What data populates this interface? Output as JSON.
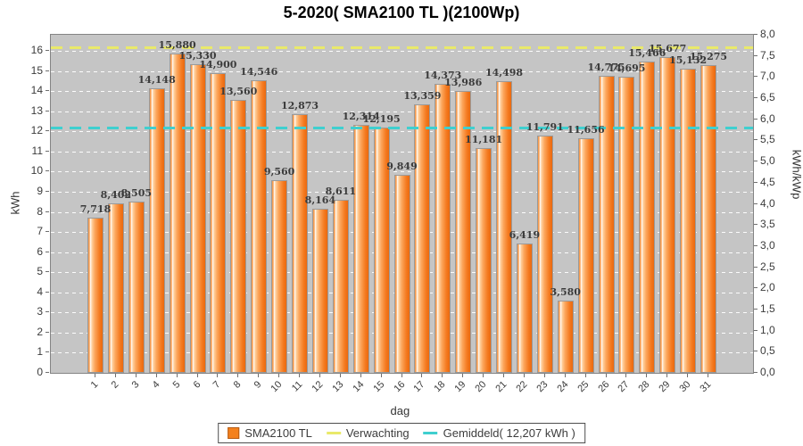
{
  "title": "5-2020( SMA2100 TL )(2100Wp)",
  "chart_data": {
    "type": "bar",
    "title": "5-2020( SMA2100 TL )(2100Wp)",
    "xlabel": "dag",
    "ylabel_left": "kWh",
    "ylabel_right": "kWh/kWp",
    "grid": "horizontal-white-dashed",
    "plot_background": "#c5c5c5",
    "legend_position": "bottom-center",
    "categories": [
      "1",
      "2",
      "3",
      "4",
      "5",
      "6",
      "7",
      "8",
      "9",
      "10",
      "11",
      "12",
      "13",
      "14",
      "15",
      "16",
      "17",
      "18",
      "19",
      "20",
      "21",
      "22",
      "23",
      "24",
      "25",
      "26",
      "27",
      "28",
      "29",
      "30",
      "31"
    ],
    "series": [
      {
        "name": "SMA2100 TL",
        "color": "#f4811e",
        "values": [
          7.718,
          8.402,
          8.505,
          14.148,
          15.88,
          15.33,
          14.9,
          13.56,
          14.546,
          9.56,
          12.873,
          8.164,
          8.611,
          12.314,
          12.195,
          9.849,
          13.359,
          14.373,
          13.986,
          11.181,
          14.498,
          6.419,
          11.791,
          3.58,
          11.656,
          14.775,
          14.695,
          15.466,
          15.677,
          15.132,
          15.275
        ],
        "labels": [
          "7,718",
          "8,402",
          "8,505",
          "14,148",
          "15,880",
          "15,330",
          "14,900",
          "13,560",
          "14,546",
          "9,560",
          "12,873",
          "8,164",
          "8,611",
          "12,314",
          "12,195",
          "9,849",
          "13,359",
          "14,373",
          "13,986",
          "11,181",
          "14,498",
          "6,419",
          "11,791",
          "3,580",
          "11,656",
          "14,775",
          "14,695",
          "15,466",
          "15,677",
          "15,132",
          "15,275"
        ]
      }
    ],
    "reference_lines": [
      {
        "name": "Verwachting",
        "value": 16.18,
        "color": "#e9e96a",
        "style": "dashed"
      },
      {
        "name": "Gemiddeld",
        "label": "Gemiddeld( 12,207 kWh )",
        "value": 12.207,
        "color": "#3fcfcf",
        "style": "dashed"
      }
    ],
    "left_axis": {
      "min": 0,
      "max": 16.8,
      "tick_min": 0,
      "tick_max": 16,
      "tick_step": 1
    },
    "right_axis": {
      "min": 0,
      "max": 8.0,
      "tick_step": 0.5,
      "decimal_separator": ","
    }
  },
  "legend": {
    "items": [
      {
        "label": "SMA2100 TL",
        "swatch": "square",
        "color": "#f4811e",
        "border": "#b65a12"
      },
      {
        "label": "Verwachting",
        "swatch": "line",
        "color": "#e9e96a"
      },
      {
        "label": "Gemiddeld( 12,207 kWh )",
        "swatch": "line",
        "color": "#3fcfcf"
      }
    ]
  }
}
